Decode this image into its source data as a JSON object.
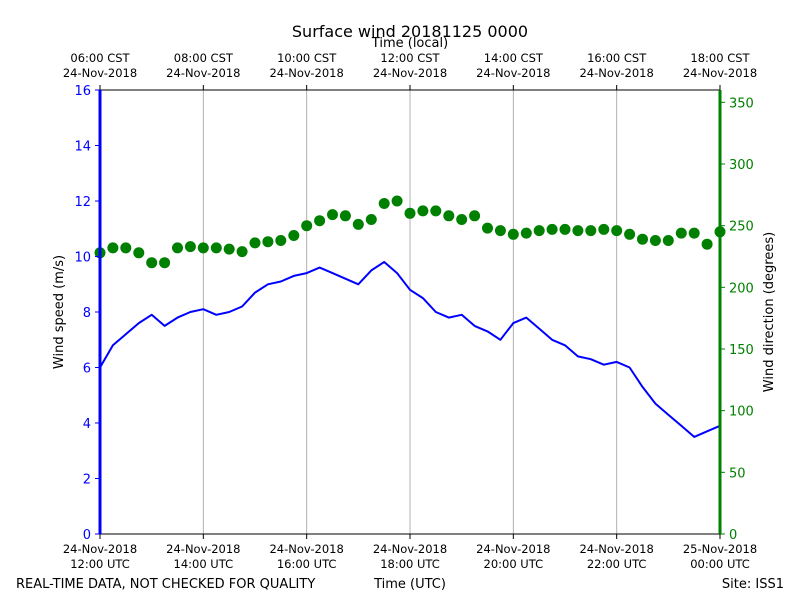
{
  "chart_data": {
    "type": "line",
    "title": "Surface wind 20181125 0000",
    "top_axis_label": "Time (local)",
    "top_ticks": [
      {
        "time": "06:00 CST",
        "date": "24-Nov-2018"
      },
      {
        "time": "08:00 CST",
        "date": "24-Nov-2018"
      },
      {
        "time": "10:00 CST",
        "date": "24-Nov-2018"
      },
      {
        "time": "12:00 CST",
        "date": "24-Nov-2018"
      },
      {
        "time": "14:00 CST",
        "date": "24-Nov-2018"
      },
      {
        "time": "16:00 CST",
        "date": "24-Nov-2018"
      },
      {
        "time": "18:00 CST",
        "date": "24-Nov-2018"
      }
    ],
    "bottom_ticks": [
      {
        "date": "24-Nov-2018",
        "time": "12:00 UTC"
      },
      {
        "date": "24-Nov-2018",
        "time": "14:00 UTC"
      },
      {
        "date": "24-Nov-2018",
        "time": "16:00 UTC"
      },
      {
        "date": "24-Nov-2018",
        "time": "18:00 UTC"
      },
      {
        "date": "24-Nov-2018",
        "time": "20:00 UTC"
      },
      {
        "date": "24-Nov-2018",
        "time": "22:00 UTC"
      },
      {
        "date": "25-Nov-2018",
        "time": "00:00 UTC"
      }
    ],
    "xlabel": "Time (UTC)",
    "xlim_hours_utc": [
      12,
      24
    ],
    "ylabel_left": "Wind speed (m/s)",
    "ylim_left": [
      0,
      16
    ],
    "yticks_left": [
      0,
      2,
      4,
      6,
      8,
      10,
      12,
      14,
      16
    ],
    "ylabel_right": "Wind direction (degrees)",
    "ylim_right": [
      0,
      360
    ],
    "yticks_right": [
      0,
      50,
      100,
      150,
      200,
      250,
      300,
      350
    ],
    "grid": "vertical",
    "series": [
      {
        "name": "Wind speed",
        "axis": "left",
        "color": "#0000ff",
        "style": "line",
        "x_hours_utc": [
          12.0,
          12.25,
          12.5,
          12.75,
          13.0,
          13.25,
          13.5,
          13.75,
          14.0,
          14.25,
          14.5,
          14.75,
          15.0,
          15.25,
          15.5,
          15.75,
          16.0,
          16.25,
          16.5,
          16.75,
          17.0,
          17.25,
          17.5,
          17.75,
          18.0,
          18.25,
          18.5,
          18.75,
          19.0,
          19.25,
          19.5,
          19.75,
          20.0,
          20.25,
          20.5,
          20.75,
          21.0,
          21.25,
          21.5,
          21.75,
          22.0,
          22.25,
          22.5,
          22.75,
          23.0,
          23.25,
          23.5,
          23.75,
          24.0
        ],
        "values": [
          6.0,
          6.8,
          7.2,
          7.6,
          7.9,
          7.5,
          7.8,
          8.0,
          8.1,
          7.9,
          8.0,
          8.2,
          8.7,
          9.0,
          9.1,
          9.3,
          9.4,
          9.6,
          9.4,
          9.2,
          9.0,
          9.5,
          9.8,
          9.4,
          8.8,
          8.5,
          8.0,
          7.8,
          7.9,
          7.5,
          7.3,
          7.0,
          7.6,
          7.8,
          7.4,
          7.0,
          6.8,
          6.4,
          6.3,
          6.1,
          6.2,
          6.0,
          5.3,
          4.7,
          4.3,
          3.9,
          3.5,
          3.7,
          3.9
        ]
      },
      {
        "name": "Wind direction",
        "axis": "right",
        "color": "#008000",
        "style": "markers",
        "x_hours_utc": [
          12.0,
          12.25,
          12.5,
          12.75,
          13.0,
          13.25,
          13.5,
          13.75,
          14.0,
          14.25,
          14.5,
          14.75,
          15.0,
          15.25,
          15.5,
          15.75,
          16.0,
          16.25,
          16.5,
          16.75,
          17.0,
          17.25,
          17.5,
          17.75,
          18.0,
          18.25,
          18.5,
          18.75,
          19.0,
          19.25,
          19.5,
          19.75,
          20.0,
          20.25,
          20.5,
          20.75,
          21.0,
          21.25,
          21.5,
          21.75,
          22.0,
          22.25,
          22.5,
          22.75,
          23.0,
          23.25,
          23.5,
          23.75,
          24.0
        ],
        "values": [
          228,
          232,
          232,
          228,
          220,
          220,
          232,
          233,
          232,
          232,
          231,
          229,
          236,
          237,
          238,
          242,
          250,
          254,
          259,
          258,
          251,
          255,
          268,
          270,
          260,
          262,
          262,
          258,
          255,
          258,
          248,
          246,
          243,
          244,
          246,
          247,
          247,
          246,
          246,
          247,
          246,
          243,
          239,
          238,
          238,
          244,
          244,
          235,
          245
        ]
      }
    ]
  },
  "footer": {
    "disclaimer": "REAL-TIME DATA, NOT CHECKED FOR QUALITY",
    "site": "Site: ISS1"
  },
  "colors": {
    "speed": "#0000ff",
    "direction": "#008000",
    "grid": "#b0b0b0"
  }
}
